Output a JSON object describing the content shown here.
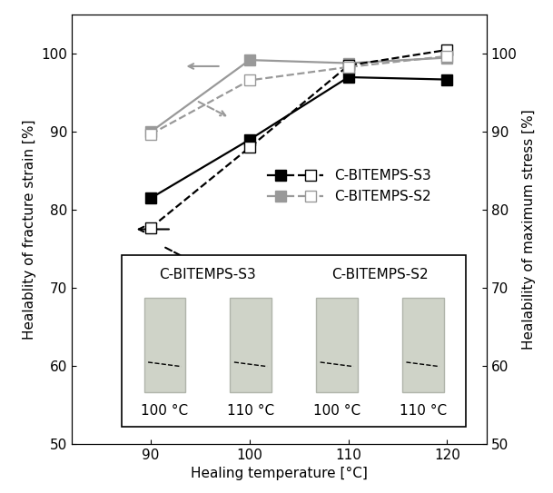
{
  "chart_data": {
    "type": "line",
    "x_label": "Healing temperature [°C]",
    "y_label": "Healablity of fracture strain [%]",
    "y2_label": "Healability of maximum stress [%]",
    "x": [
      90,
      100,
      110,
      120
    ],
    "xlim": [
      82,
      124
    ],
    "xticks": [
      90,
      100,
      110,
      120
    ],
    "ylim": [
      50,
      105
    ],
    "yticks": [
      50,
      60,
      70,
      80,
      90,
      100
    ],
    "y2lim": [
      50,
      105
    ],
    "y2ticks": [
      50,
      60,
      70,
      80,
      90,
      100
    ],
    "legend": "center",
    "series": [
      {
        "name": "C-BITEMPS-S3",
        "color": "#000000",
        "marker": "square",
        "line_style": "solid",
        "axis": "y",
        "values": [
          81.5,
          89.0,
          97.0,
          96.7
        ]
      },
      {
        "name": "C-BITEMPS-S3",
        "color": "#000000",
        "marker": "open_square",
        "line_style": "dashed",
        "axis": "y2",
        "values": [
          77.7,
          88.0,
          98.5,
          100.5
        ]
      },
      {
        "name": "C-BITEMPS-S2",
        "color": "#999999",
        "marker": "square",
        "line_style": "solid",
        "axis": "y",
        "values": [
          90.0,
          99.2,
          98.8,
          99.5
        ]
      },
      {
        "name": "C-BITEMPS-S2",
        "color": "#999999",
        "marker": "open_square",
        "line_style": "dashed",
        "axis": "y2",
        "values": [
          89.7,
          96.6,
          98.3,
          99.7
        ]
      }
    ],
    "annotations": [
      {
        "title": "C-BITEMPS-S3",
        "labels": [
          "100 °C",
          "110 °C"
        ]
      },
      {
        "title": "C-BITEMPS-S2",
        "labels": [
          "100 °C",
          "110 °C"
        ]
      }
    ]
  }
}
